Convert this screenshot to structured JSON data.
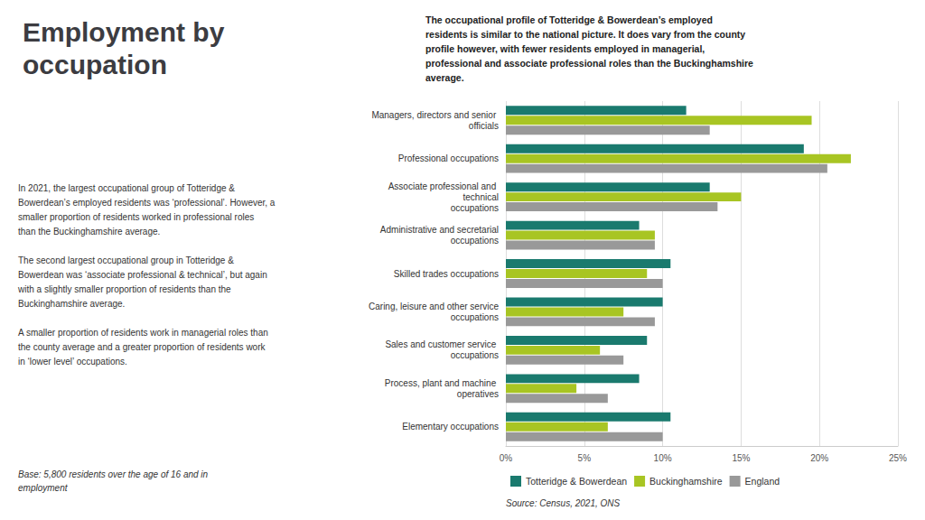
{
  "chart_data": {
    "type": "bar",
    "orientation": "horizontal",
    "title": "Employment by\noccupation",
    "annotations": [
      "The occupational profile of Totteridge & Bowerdean’s employed\nresidents is similar to the national picture. It does vary from the county\nprofile however, with fewer residents employed in managerial,\nprofessional and associate professional roles than the Buckinghamshire\naverage.",
      "In 2021, the largest occupational group of Totteridge &\nBowerdean’s employed residents was ‘professional’. However, a\nsmaller proportion of residents worked in professional roles\nthan the Buckinghamshire average.",
      "The second largest occupational group in Totteridge &\nBowerdean was ‘associate professional & technical’, but again\nwith a slightly smaller proportion of residents than the\nBuckinghamshire average.",
      "A smaller proportion of residents work in managerial roles than\nthe county average and a greater proportion of residents work\nin ‘lower level’ occupations.",
      "Base: 5,800 residents over the age of 16 and in\nemployment",
      "Source: Census, 2021, ONS"
    ],
    "categories": [
      "Managers, directors and senior officials",
      "Professional occupations",
      "Associate professional and technical\noccupations",
      "Administrative and secretarial\noccupations",
      "Skilled trades occupations",
      "Caring, leisure and other service\noccupations",
      "Sales and customer service occupations",
      "Process, plant and machine operatives",
      "Elementary occupations"
    ],
    "series": [
      {
        "name": "Totteridge & Bowerdean",
        "color": "#1a7a6e",
        "values": [
          11.5,
          19.0,
          13.0,
          8.5,
          10.5,
          10.0,
          9.0,
          8.5,
          10.5
        ]
      },
      {
        "name": "Buckinghamshire",
        "color": "#a8c523",
        "values": [
          19.5,
          22.0,
          15.0,
          9.5,
          9.0,
          7.5,
          6.0,
          4.5,
          6.5
        ]
      },
      {
        "name": "England",
        "color": "#999999",
        "values": [
          13.0,
          20.5,
          13.5,
          9.5,
          10.0,
          9.5,
          7.5,
          6.5,
          10.0
        ]
      }
    ],
    "xlim": [
      0,
      25
    ],
    "xticks": [
      {
        "value": 0,
        "label": "0%"
      },
      {
        "value": 5,
        "label": "5%"
      },
      {
        "value": 10,
        "label": "10%"
      },
      {
        "value": 15,
        "label": "15%"
      },
      {
        "value": 20,
        "label": "20%"
      },
      {
        "value": 25,
        "label": "25%"
      }
    ],
    "grid": true,
    "legend": "bottom"
  }
}
